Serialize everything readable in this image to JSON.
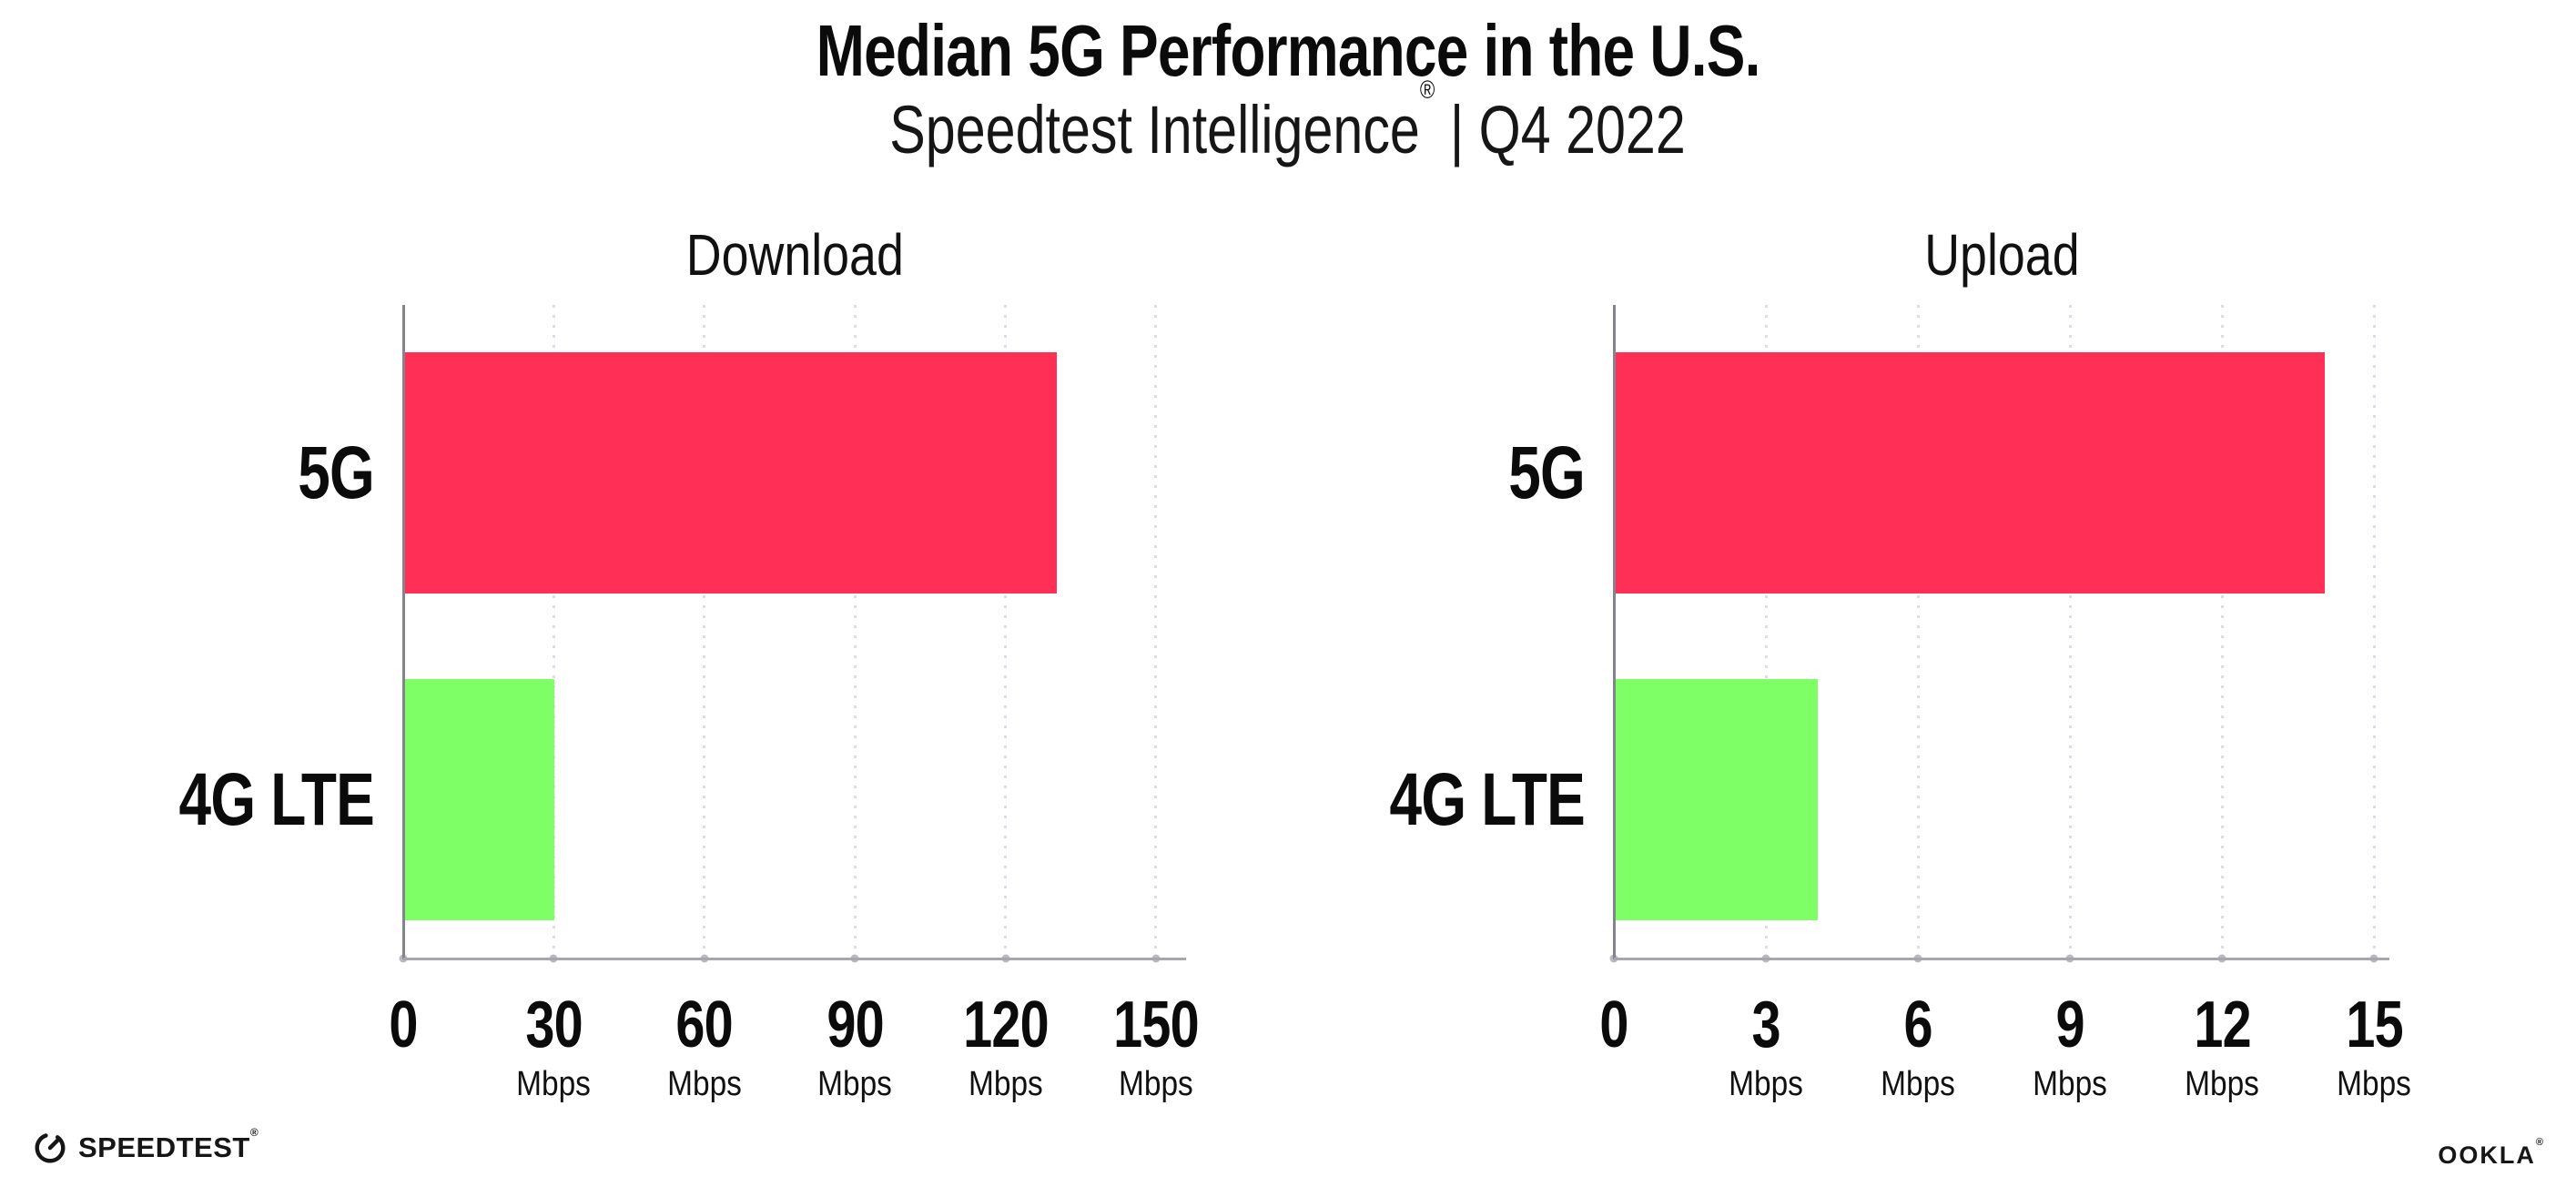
{
  "header": {
    "title": "Median 5G Performance in the U.S.",
    "subtitle_brand": "Speedtest Intelligence",
    "subtitle_reg": "®",
    "subtitle_rest": " | Q4 2022"
  },
  "chart_data": [
    {
      "type": "bar",
      "orientation": "horizontal",
      "title": "Download",
      "categories": [
        "5G",
        "4G LTE"
      ],
      "values": [
        130,
        30
      ],
      "unit": "Mbps",
      "xlim": [
        0,
        156
      ],
      "xticks": [
        0,
        30,
        60,
        90,
        120,
        150
      ],
      "bar_colors": [
        "#ff2f56",
        "#7eff66"
      ],
      "grid": "vertical-dotted",
      "legend": false
    },
    {
      "type": "bar",
      "orientation": "horizontal",
      "title": "Upload",
      "categories": [
        "5G",
        "4G LTE"
      ],
      "values": [
        14,
        4
      ],
      "unit": "Mbps",
      "xlim": [
        0,
        15.3
      ],
      "xticks": [
        0,
        3,
        6,
        9,
        12,
        15
      ],
      "bar_colors": [
        "#ff2f56",
        "#7eff66"
      ],
      "grid": "vertical-dotted",
      "legend": false
    }
  ],
  "colors": {
    "bar_5g": "#ff2f56",
    "bar_4g_lte": "#7eff66",
    "gridline": "#dddde9",
    "axis_line": "#a6a6ac",
    "left_spine": "#84848e",
    "tick_dot": "#b9b9c4",
    "text": "#0b0b0b"
  },
  "footer": {
    "speedtest_label": "SPEEDTEST",
    "speedtest_reg": "®",
    "speedtest_icon": "gauge-icon",
    "ookla_label": "OOKLA",
    "ookla_reg": "®"
  }
}
